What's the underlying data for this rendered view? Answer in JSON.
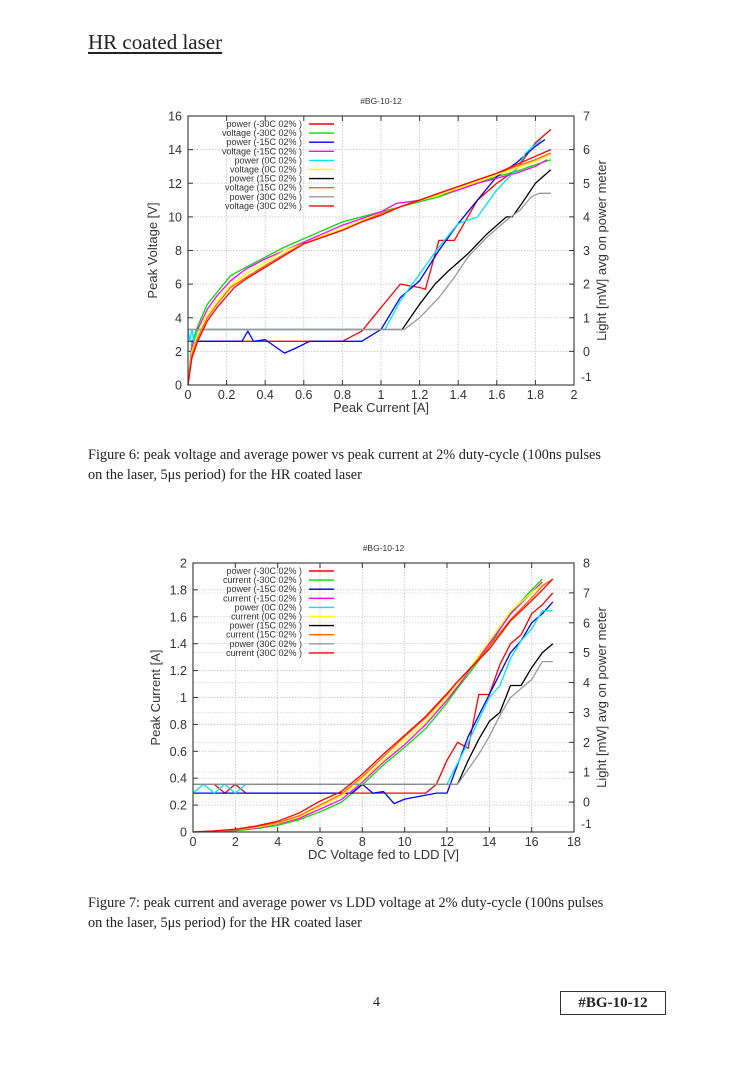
{
  "page": {
    "heading": "HR coated laser",
    "page_number": "4",
    "ref_label": "#BG-10-12"
  },
  "figures": [
    {
      "caption_line1": "Figure 6: peak voltage and average power vs peak current at 2% duty-cycle (100ns pulses",
      "caption_line2": "on the laser, 5μs period) for the HR coated laser"
    },
    {
      "caption_line1": "Figure 7: peak current and average power vs LDD voltage at 2% duty-cycle (100ns pulses",
      "caption_line2": "on the laser, 5μs period) for the HR coated laser"
    }
  ],
  "chart_data": [
    {
      "type": "line",
      "title": "#BG-10-12",
      "xlabel": "Peak Current [A]",
      "ylabel": "Peak Voltage [V]",
      "y2label": "Light [mW] avg on power meter",
      "xlim": [
        0,
        2
      ],
      "ylim": [
        0,
        16
      ],
      "y2lim": [
        -1,
        7
      ],
      "xticks": [
        "0",
        "0.2",
        "0.4",
        "0.6",
        "0.8",
        "1",
        "1.2",
        "1.4",
        "1.6",
        "1.8",
        "2"
      ],
      "yticks": [
        "0",
        "2",
        "4",
        "6",
        "8",
        "10",
        "12",
        "14",
        "16"
      ],
      "y2ticks": [
        "-1",
        "0",
        "1",
        "2",
        "3",
        "4",
        "5",
        "6",
        "7"
      ],
      "grid": true,
      "legend_position": "top-left",
      "series": [
        {
          "name": "power (-30C 02% )",
          "axis": "y2",
          "color": "#ff0000",
          "x": [
            0,
            0.05,
            0.8,
            0.9,
            1.1,
            1.2,
            1.23,
            1.3,
            1.38,
            1.5,
            1.6,
            1.7,
            1.8,
            1.88
          ],
          "y": [
            0.3,
            0.3,
            0.3,
            0.6,
            2.0,
            1.9,
            1.85,
            3.3,
            3.3,
            4.5,
            5.0,
            5.4,
            6.2,
            6.6
          ]
        },
        {
          "name": "voltage (-30C 02% )",
          "axis": "y1",
          "color": "#00dd00",
          "x": [
            0,
            0.02,
            0.05,
            0.1,
            0.15,
            0.22,
            0.3,
            0.4,
            0.5,
            0.6,
            0.7,
            0.8,
            0.9,
            1.0,
            1.1,
            1.2,
            1.3,
            1.4,
            1.5,
            1.6,
            1.7,
            1.8,
            1.88
          ],
          "y": [
            0,
            2.5,
            3.5,
            4.8,
            5.5,
            6.5,
            7.0,
            7.6,
            8.2,
            8.7,
            9.2,
            9.7,
            10.0,
            10.3,
            10.6,
            10.9,
            11.2,
            11.6,
            12.0,
            12.4,
            12.7,
            13.1,
            13.4
          ]
        },
        {
          "name": "power (-15C 02% )",
          "axis": "y2",
          "color": "#0000ff",
          "x": [
            0,
            0.28,
            0.31,
            0.34,
            0.4,
            0.5,
            0.56,
            0.63,
            0.9,
            1.0,
            1.1,
            1.2,
            1.3,
            1.4,
            1.5,
            1.6,
            1.7,
            1.8,
            1.85
          ],
          "y": [
            0.3,
            0.3,
            0.6,
            0.3,
            0.35,
            -0.05,
            0.1,
            0.3,
            0.3,
            0.65,
            1.6,
            2.1,
            3.0,
            3.8,
            4.5,
            5.2,
            5.6,
            6.1,
            6.3
          ]
        },
        {
          "name": "voltage (-15C 02% )",
          "axis": "y1",
          "color": "#ff00ff",
          "x": [
            0,
            0.02,
            0.05,
            0.1,
            0.15,
            0.22,
            0.3,
            0.4,
            0.5,
            0.6,
            0.7,
            0.8,
            0.9,
            1.0,
            1.08,
            1.15,
            1.2,
            1.3,
            1.4,
            1.5,
            1.6,
            1.7,
            1.8,
            1.86
          ],
          "y": [
            0,
            2.2,
            3.3,
            4.5,
            5.3,
            6.2,
            6.9,
            7.5,
            8.0,
            8.5,
            9.0,
            9.5,
            9.9,
            10.3,
            10.8,
            10.9,
            11.0,
            11.3,
            11.6,
            12.0,
            12.3,
            12.6,
            13.0,
            13.4
          ]
        },
        {
          "name": "power (0C 02% )",
          "axis": "y2",
          "color": "#00e5ee",
          "x": [
            0,
            0.01,
            0.02,
            0.03,
            0.05,
            1.02,
            1.1,
            1.2,
            1.3,
            1.4,
            1.5,
            1.6,
            1.7,
            1.75,
            1.83
          ],
          "y": [
            0.65,
            0.3,
            0.65,
            0.3,
            0.65,
            0.65,
            1.5,
            2.3,
            3.1,
            3.8,
            4.0,
            4.8,
            5.4,
            5.9,
            6.3
          ]
        },
        {
          "name": "voltage (0C 02% )",
          "axis": "y1",
          "color": "#ffff00",
          "x": [
            0,
            0.02,
            0.05,
            0.1,
            0.15,
            0.22,
            0.3,
            0.4,
            0.5,
            0.6,
            0.7,
            0.8,
            0.9,
            1.0,
            1.1,
            1.2,
            1.3,
            1.4,
            1.5,
            1.6,
            1.7,
            1.8,
            1.88
          ],
          "y": [
            0,
            2.0,
            3.0,
            4.2,
            5.0,
            5.9,
            6.6,
            7.3,
            8.0,
            8.4,
            8.9,
            9.3,
            9.8,
            10.2,
            10.6,
            11.0,
            11.3,
            11.7,
            12.1,
            12.5,
            12.9,
            13.3,
            13.7
          ]
        },
        {
          "name": "power (15C 02% )",
          "axis": "y2",
          "color": "#000000",
          "x": [
            0,
            1.11,
            1.2,
            1.28,
            1.35,
            1.45,
            1.55,
            1.65,
            1.68,
            1.73,
            1.8,
            1.88
          ],
          "y": [
            0.65,
            0.65,
            1.4,
            2.0,
            2.4,
            2.9,
            3.5,
            4.0,
            4.0,
            4.4,
            5.0,
            5.4
          ]
        },
        {
          "name": "voltage (15C 02% )",
          "axis": "y1",
          "color": "#ff6600",
          "x": [
            0,
            0.02,
            0.05,
            0.1,
            0.15,
            0.22,
            0.3,
            0.4,
            0.5,
            0.6,
            0.7,
            0.8,
            0.9,
            1.0,
            1.1,
            1.2,
            1.3,
            1.4,
            1.5,
            1.6,
            1.7,
            1.8,
            1.88
          ],
          "y": [
            0,
            1.8,
            2.8,
            4.0,
            4.8,
            5.8,
            6.4,
            7.1,
            7.8,
            8.4,
            8.8,
            9.2,
            9.7,
            10.2,
            10.6,
            11.0,
            11.4,
            11.8,
            12.2,
            12.6,
            13.0,
            13.4,
            13.8
          ]
        },
        {
          "name": "power (30C 02% )",
          "axis": "y2",
          "color": "#999999",
          "x": [
            0,
            1.12,
            1.2,
            1.3,
            1.38,
            1.45,
            1.55,
            1.65,
            1.72,
            1.78,
            1.82,
            1.88
          ],
          "y": [
            0.65,
            0.65,
            1.0,
            1.6,
            2.2,
            2.8,
            3.4,
            3.9,
            4.2,
            4.6,
            4.7,
            4.7
          ]
        },
        {
          "name": "voltage (30C 02% )",
          "axis": "y1",
          "color": "#ff0000",
          "x": [
            0,
            0.02,
            0.05,
            0.1,
            0.15,
            0.24,
            0.3,
            0.4,
            0.5,
            0.6,
            0.7,
            0.8,
            0.9,
            1.0,
            1.1,
            1.2,
            1.3,
            1.4,
            1.5,
            1.6,
            1.7,
            1.8,
            1.88
          ],
          "y": [
            0,
            1.6,
            2.6,
            3.8,
            4.6,
            5.8,
            6.3,
            7.0,
            7.7,
            8.4,
            8.8,
            9.2,
            9.7,
            10.1,
            10.6,
            11.0,
            11.4,
            11.8,
            12.2,
            12.6,
            13.1,
            13.6,
            14.0
          ]
        }
      ]
    },
    {
      "type": "line",
      "title": "#BG-10-12",
      "xlabel": "DC Voltage fed to LDD [V]",
      "ylabel": "Peak Current [A]",
      "y2label": "Light [mW] avg on power meter",
      "xlim": [
        0,
        18
      ],
      "ylim": [
        0,
        2
      ],
      "y2lim": [
        -1,
        8
      ],
      "xticks": [
        "0",
        "2",
        "4",
        "6",
        "8",
        "10",
        "12",
        "14",
        "16",
        "18"
      ],
      "yticks": [
        "0",
        "0.2",
        "0.4",
        "0.6",
        "0.8",
        "1",
        "1.2",
        "1.4",
        "1.6",
        "1.8",
        "2"
      ],
      "y2ticks": [
        "-1",
        "0",
        "1",
        "2",
        "3",
        "4",
        "5",
        "6",
        "7",
        "8"
      ],
      "grid": true,
      "legend_position": "top-left",
      "series": [
        {
          "name": "power (-30C 02% )",
          "axis": "y2",
          "color": "#ff0000",
          "x": [
            0,
            1,
            1.5,
            2,
            2.5,
            11,
            11.5,
            12,
            12.5,
            13,
            13.5,
            14,
            14.5,
            15,
            15.5,
            16,
            16.5,
            17
          ],
          "y": [
            0.6,
            0.6,
            0.3,
            0.6,
            0.3,
            0.3,
            0.6,
            1.4,
            2.0,
            1.8,
            3.6,
            3.6,
            4.6,
            5.3,
            5.6,
            6.3,
            6.6,
            7.0
          ]
        },
        {
          "name": "current (-30C 02% )",
          "axis": "y1",
          "color": "#00dd00",
          "x": [
            0,
            1,
            2,
            3,
            4,
            5,
            6,
            7,
            8,
            9,
            10,
            11,
            12,
            12.5,
            13,
            14,
            15,
            16,
            16.5
          ],
          "y": [
            0,
            0.005,
            0.01,
            0.025,
            0.05,
            0.09,
            0.15,
            0.22,
            0.35,
            0.5,
            0.63,
            0.77,
            0.96,
            1.07,
            1.17,
            1.38,
            1.63,
            1.8,
            1.88
          ]
        },
        {
          "name": "power (-15C 02% )",
          "axis": "y2",
          "color": "#0000ff",
          "x": [
            0,
            7.5,
            8,
            8.5,
            9,
            9.5,
            10,
            11.5,
            12,
            13,
            14,
            14.5,
            15,
            15.5,
            16,
            16.5,
            17
          ],
          "y": [
            0.3,
            0.3,
            0.6,
            0.3,
            0.35,
            -0.05,
            0.1,
            0.3,
            0.3,
            2.2,
            3.6,
            4.3,
            5.0,
            5.4,
            6.0,
            6.3,
            6.7
          ]
        },
        {
          "name": "current (-15C 02% )",
          "axis": "y1",
          "color": "#ff00ff",
          "x": [
            0,
            1,
            2,
            3,
            4,
            5,
            6,
            7,
            8,
            9,
            10,
            11,
            12,
            12.5,
            13,
            14,
            15,
            16,
            16.5
          ],
          "y": [
            0,
            0.005,
            0.015,
            0.03,
            0.06,
            0.1,
            0.17,
            0.24,
            0.37,
            0.52,
            0.65,
            0.8,
            0.98,
            1.08,
            1.19,
            1.4,
            1.62,
            1.78,
            1.86
          ]
        },
        {
          "name": "power (0C 02% )",
          "axis": "y2",
          "color": "#00e5ee",
          "x": [
            0,
            0.5,
            1,
            1.5,
            2,
            2.5,
            12,
            13,
            14,
            14.5,
            15,
            15.5,
            16,
            16.5,
            17
          ],
          "y": [
            0.3,
            0.6,
            0.3,
            0.6,
            0.3,
            0.6,
            0.6,
            2.0,
            3.5,
            3.9,
            4.8,
            5.4,
            5.8,
            6.4,
            6.4
          ]
        },
        {
          "name": "current (0C 02% )",
          "axis": "y1",
          "color": "#ffff00",
          "x": [
            0,
            1,
            2,
            3,
            4,
            5,
            6,
            7,
            8,
            9,
            10,
            11,
            12,
            12.5,
            13,
            14,
            15,
            16,
            16.5
          ],
          "y": [
            0,
            0.006,
            0.018,
            0.035,
            0.065,
            0.11,
            0.19,
            0.27,
            0.39,
            0.53,
            0.68,
            0.82,
            1.0,
            1.1,
            1.2,
            1.42,
            1.64,
            1.78,
            1.84
          ]
        },
        {
          "name": "power (15C 02% )",
          "axis": "y2",
          "color": "#000000",
          "x": [
            0,
            12.5,
            13,
            13.5,
            14,
            14.5,
            15,
            15.5,
            16,
            16.5,
            17
          ],
          "y": [
            0.6,
            0.6,
            1.4,
            2.1,
            2.7,
            3.0,
            3.9,
            3.9,
            4.5,
            5.0,
            5.3
          ]
        },
        {
          "name": "current (15C 02% )",
          "axis": "y1",
          "color": "#ff6600",
          "x": [
            0,
            1,
            2,
            3,
            4,
            5,
            6,
            7,
            8,
            9,
            10,
            11,
            12,
            12.5,
            13,
            14,
            15,
            16,
            16.5,
            17
          ],
          "y": [
            0,
            0.007,
            0.02,
            0.04,
            0.07,
            0.12,
            0.2,
            0.28,
            0.41,
            0.56,
            0.71,
            0.85,
            1.02,
            1.12,
            1.2,
            1.38,
            1.58,
            1.74,
            1.83,
            1.88
          ]
        },
        {
          "name": "power (30C 02% )",
          "axis": "y2",
          "color": "#999999",
          "x": [
            0,
            12.5,
            13,
            13.5,
            14,
            14.5,
            15,
            15.5,
            16,
            16.5,
            17
          ],
          "y": [
            0.6,
            0.6,
            1.1,
            1.6,
            2.2,
            2.9,
            3.5,
            3.8,
            4.1,
            4.7,
            4.7
          ]
        },
        {
          "name": "current (30C 02% )",
          "axis": "y1",
          "color": "#ff0000",
          "x": [
            0,
            1,
            2,
            3,
            4,
            5,
            6,
            7,
            8,
            9,
            10,
            11,
            12,
            12.5,
            13,
            14,
            15,
            16,
            16.5,
            17
          ],
          "y": [
            0,
            0.008,
            0.02,
            0.045,
            0.08,
            0.14,
            0.23,
            0.3,
            0.43,
            0.58,
            0.72,
            0.86,
            1.03,
            1.12,
            1.2,
            1.36,
            1.57,
            1.72,
            1.8,
            1.88
          ]
        }
      ]
    }
  ]
}
